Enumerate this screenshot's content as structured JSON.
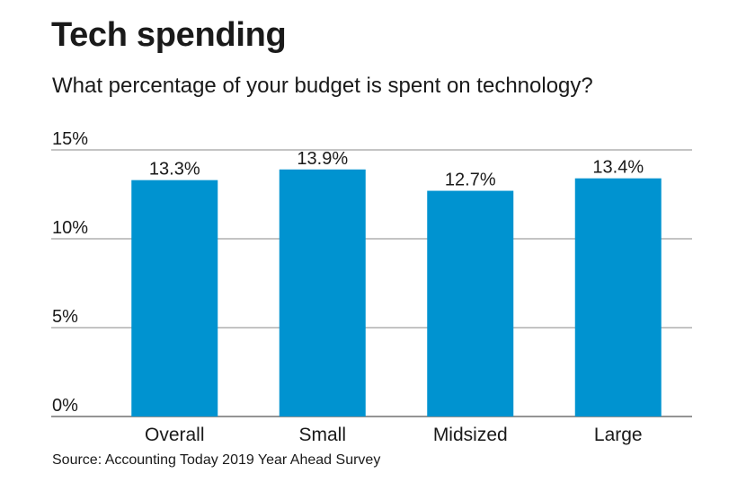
{
  "chart_data": {
    "type": "bar",
    "title": "Tech spending",
    "subtitle": "What percentage of your budget is spent on technology?",
    "categories": [
      "Overall",
      "Small",
      "Midsized",
      "Large"
    ],
    "values": [
      13.3,
      13.9,
      12.7,
      13.4
    ],
    "value_labels": [
      "13.3%",
      "13.9%",
      "12.7%",
      "13.4%"
    ],
    "ylim": [
      0,
      15
    ],
    "yticks": [
      0,
      5,
      10,
      15
    ],
    "ytick_labels": [
      "0%",
      "5%",
      "10%",
      "15%"
    ],
    "xlabel": "",
    "ylabel": "",
    "grid": true,
    "bar_color": "#0093d0",
    "source": "Source: Accounting Today 2019 Year Ahead Survey"
  }
}
